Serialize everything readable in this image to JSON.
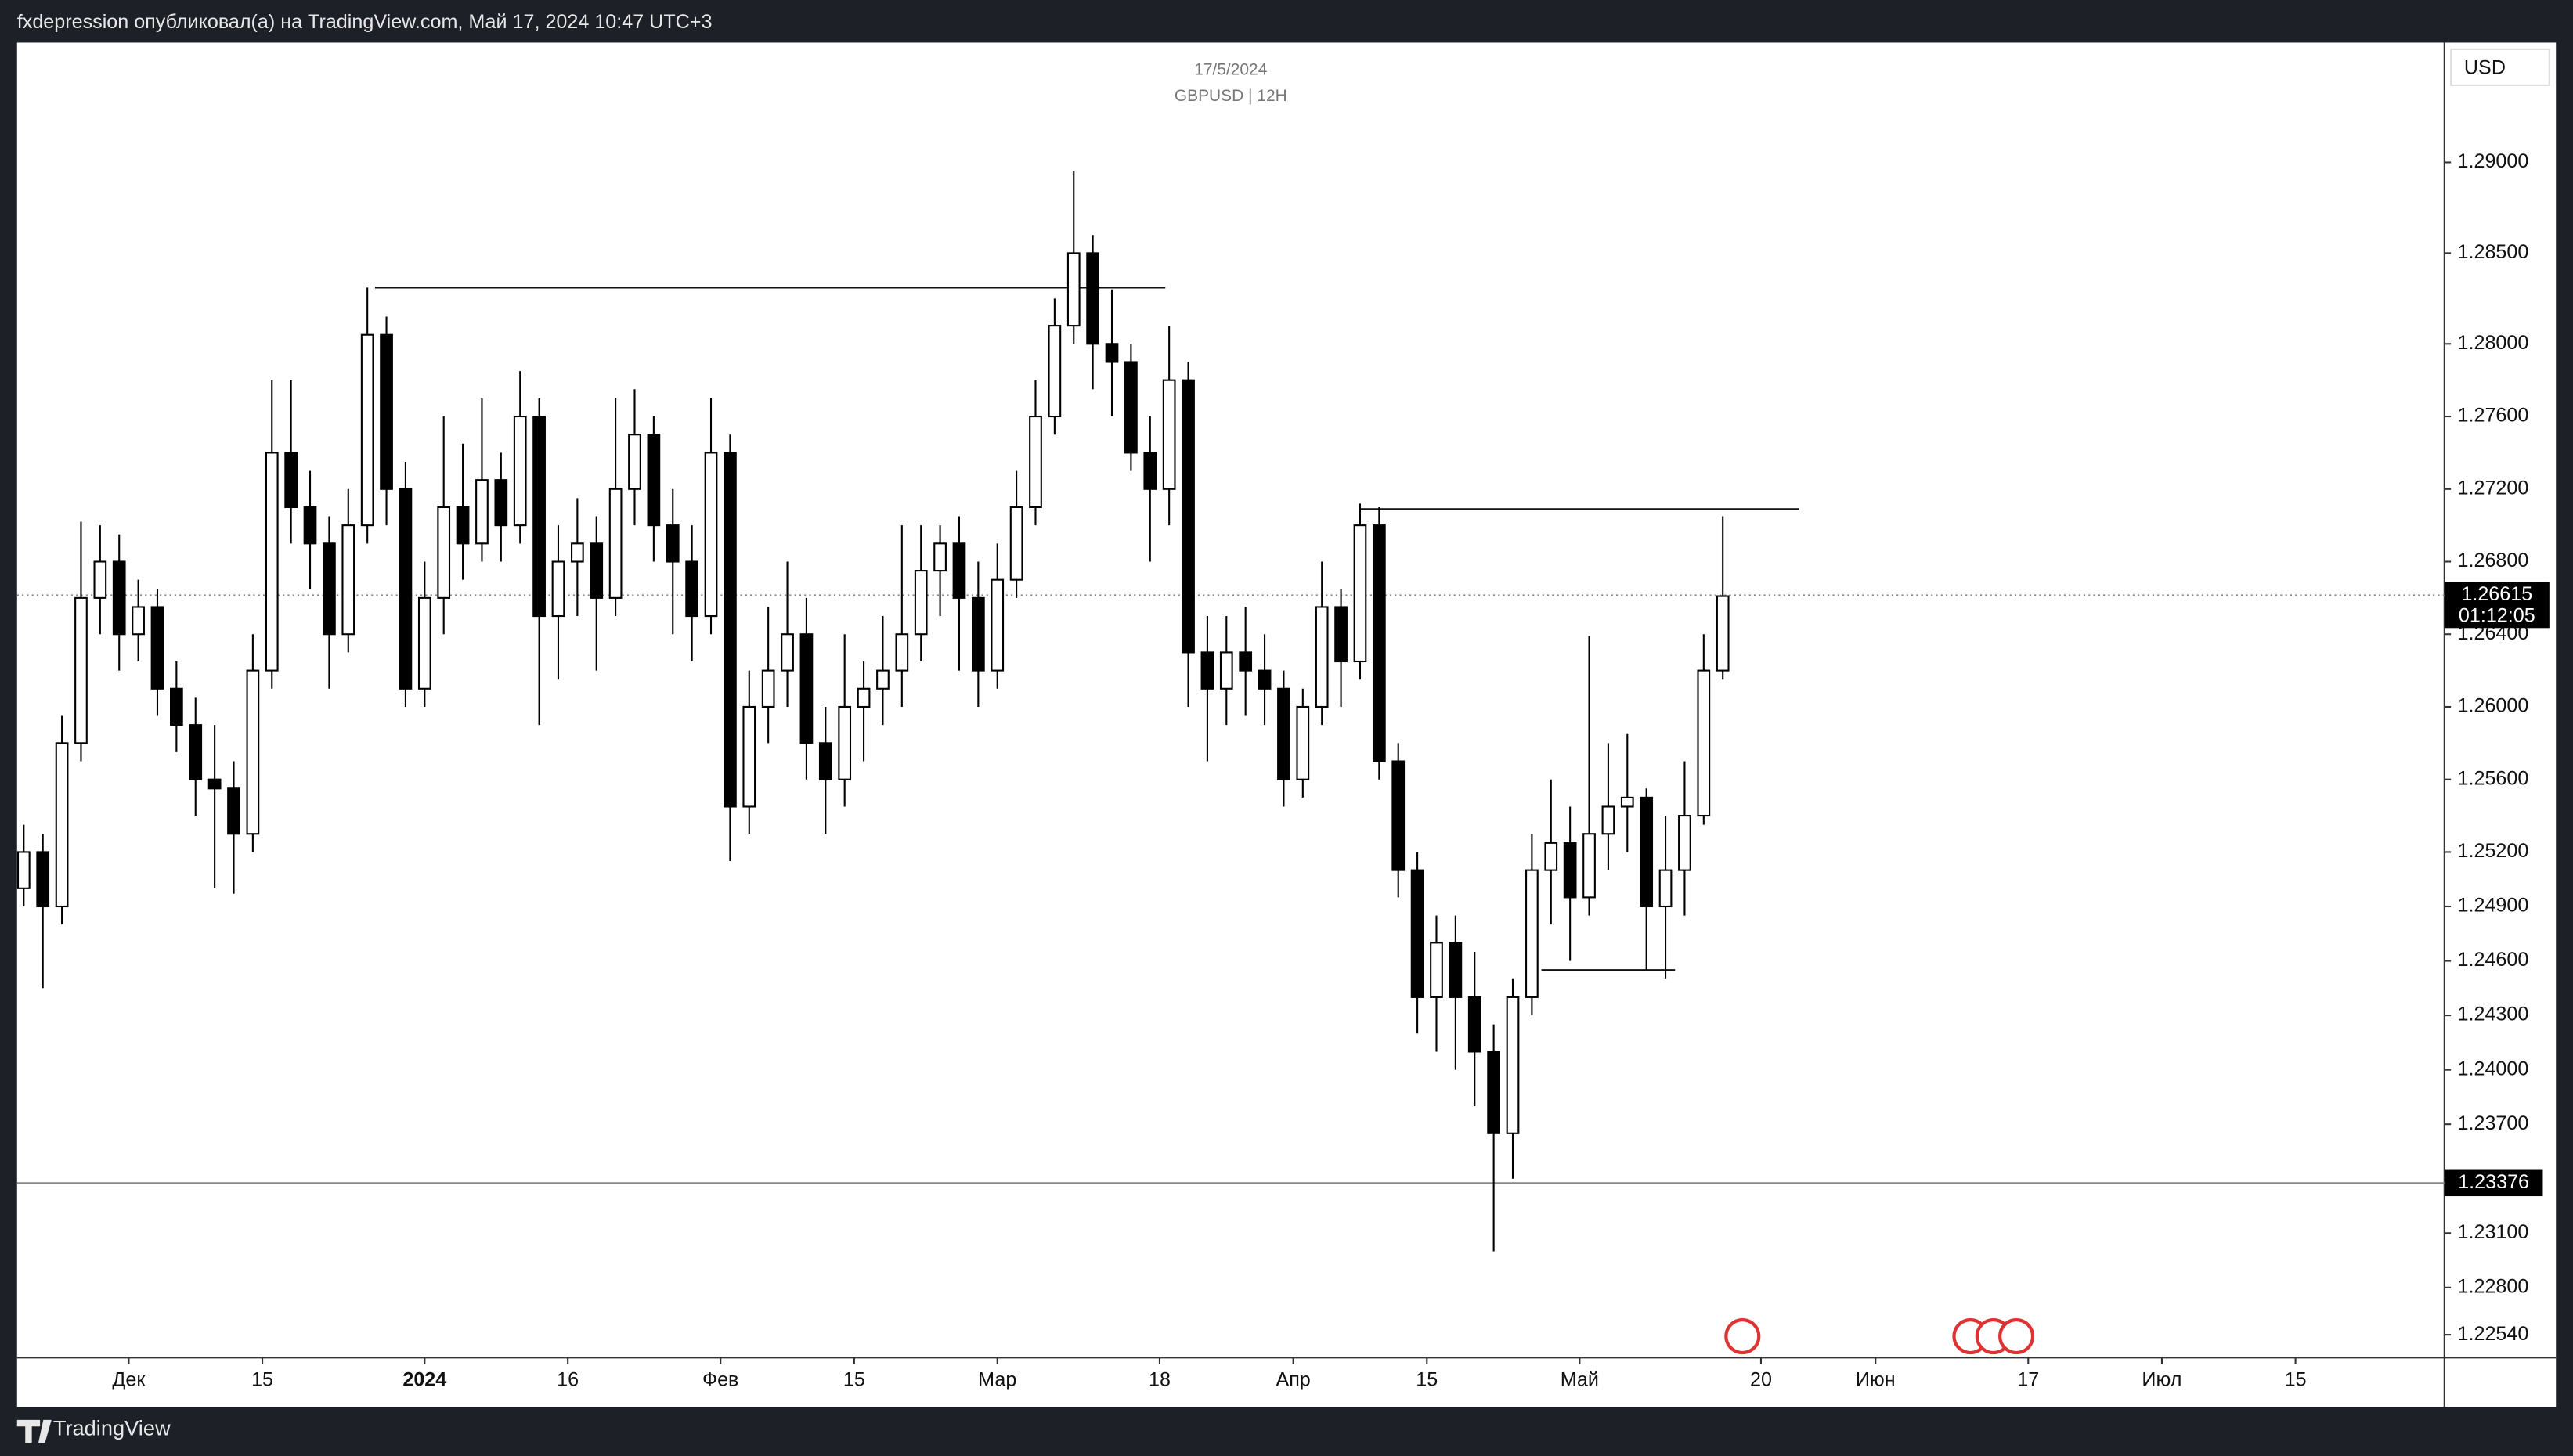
{
  "header": "fxdepression опубликовал(а) на TradingView.com, Май 17, 2024 10:47 UTC+3",
  "footer": "TradingView",
  "chart_data": {
    "type": "candlestick",
    "title": "GBPUSD | 12H",
    "subtitle": "17/5/2024",
    "currency": "USD",
    "up_color": "#ffffff",
    "down_color": "#000000",
    "border_color": "#000000",
    "x": [
      -11,
      -9,
      -7,
      -5,
      -3,
      -1,
      1,
      3,
      5,
      7,
      9,
      11,
      13,
      15,
      17,
      19,
      21,
      23,
      25,
      27,
      29,
      31,
      33,
      35,
      37,
      39,
      41,
      43,
      45,
      47,
      49,
      51,
      53,
      55,
      57,
      59,
      61,
      63,
      65,
      67,
      69,
      71,
      73,
      75,
      77,
      79,
      81,
      83,
      85,
      87,
      89,
      91,
      93,
      95,
      97,
      99,
      101,
      103,
      105,
      107,
      109,
      111,
      113,
      115,
      117,
      119,
      121,
      123,
      125,
      127,
      129,
      131,
      133,
      135,
      137,
      139,
      141,
      143,
      145,
      147,
      149,
      151,
      153,
      155,
      157,
      159,
      161,
      163,
      165,
      167
    ],
    "ohlc": [
      [
        1.25,
        1.2535,
        1.249,
        1.252
      ],
      [
        1.252,
        1.253,
        1.2445,
        1.249
      ],
      [
        1.249,
        1.2595,
        1.248,
        1.258
      ],
      [
        1.258,
        1.2702,
        1.257,
        1.266
      ],
      [
        1.266,
        1.27,
        1.264,
        1.268
      ],
      [
        1.268,
        1.2695,
        1.262,
        1.264
      ],
      [
        1.264,
        1.267,
        1.2625,
        1.2655
      ],
      [
        1.2655,
        1.2665,
        1.2595,
        1.261
      ],
      [
        1.261,
        1.2625,
        1.2575,
        1.259
      ],
      [
        1.259,
        1.2605,
        1.254,
        1.256
      ],
      [
        1.256,
        1.259,
        1.25,
        1.2555
      ],
      [
        1.2555,
        1.257,
        1.2497,
        1.253
      ],
      [
        1.253,
        1.264,
        1.252,
        1.262
      ],
      [
        1.262,
        1.278,
        1.261,
        1.274
      ],
      [
        1.274,
        1.278,
        1.269,
        1.271
      ],
      [
        1.271,
        1.273,
        1.2665,
        1.269
      ],
      [
        1.269,
        1.2705,
        1.261,
        1.264
      ],
      [
        1.264,
        1.272,
        1.263,
        1.27
      ],
      [
        1.27,
        1.2831,
        1.269,
        1.2805
      ],
      [
        1.2805,
        1.2815,
        1.27,
        1.272
      ],
      [
        1.272,
        1.2735,
        1.26,
        1.261
      ],
      [
        1.261,
        1.268,
        1.26,
        1.266
      ],
      [
        1.266,
        1.276,
        1.264,
        1.271
      ],
      [
        1.271,
        1.2745,
        1.267,
        1.269
      ],
      [
        1.269,
        1.277,
        1.268,
        1.2725
      ],
      [
        1.2725,
        1.274,
        1.268,
        1.27
      ],
      [
        1.27,
        1.2785,
        1.269,
        1.276
      ],
      [
        1.276,
        1.277,
        1.259,
        1.265
      ],
      [
        1.265,
        1.27,
        1.2615,
        1.268
      ],
      [
        1.268,
        1.2715,
        1.265,
        1.269
      ],
      [
        1.269,
        1.2705,
        1.262,
        1.266
      ],
      [
        1.266,
        1.277,
        1.265,
        1.272
      ],
      [
        1.272,
        1.2775,
        1.27,
        1.275
      ],
      [
        1.275,
        1.276,
        1.268,
        1.27
      ],
      [
        1.27,
        1.272,
        1.264,
        1.268
      ],
      [
        1.268,
        1.27,
        1.2625,
        1.265
      ],
      [
        1.265,
        1.277,
        1.264,
        1.274
      ],
      [
        1.274,
        1.275,
        1.2515,
        1.2545
      ],
      [
        1.2545,
        1.262,
        1.253,
        1.26
      ],
      [
        1.26,
        1.2655,
        1.258,
        1.262
      ],
      [
        1.262,
        1.268,
        1.26,
        1.264
      ],
      [
        1.264,
        1.266,
        1.256,
        1.258
      ],
      [
        1.258,
        1.26,
        1.253,
        1.256
      ],
      [
        1.256,
        1.264,
        1.2545,
        1.26
      ],
      [
        1.26,
        1.2625,
        1.257,
        1.261
      ],
      [
        1.261,
        1.265,
        1.259,
        1.262
      ],
      [
        1.262,
        1.27,
        1.26,
        1.264
      ],
      [
        1.264,
        1.27,
        1.2625,
        1.2675
      ],
      [
        1.2675,
        1.27,
        1.265,
        1.269
      ],
      [
        1.269,
        1.2705,
        1.262,
        1.266
      ],
      [
        1.266,
        1.268,
        1.26,
        1.262
      ],
      [
        1.262,
        1.269,
        1.261,
        1.267
      ],
      [
        1.267,
        1.273,
        1.266,
        1.271
      ],
      [
        1.271,
        1.278,
        1.27,
        1.276
      ],
      [
        1.276,
        1.2825,
        1.275,
        1.281
      ],
      [
        1.281,
        1.2895,
        1.28,
        1.285
      ],
      [
        1.285,
        1.286,
        1.2775,
        1.28
      ],
      [
        1.28,
        1.283,
        1.276,
        1.279
      ],
      [
        1.279,
        1.28,
        1.273,
        1.274
      ],
      [
        1.274,
        1.276,
        1.268,
        1.272
      ],
      [
        1.272,
        1.281,
        1.27,
        1.278
      ],
      [
        1.278,
        1.279,
        1.26,
        1.263
      ],
      [
        1.263,
        1.265,
        1.257,
        1.261
      ],
      [
        1.261,
        1.265,
        1.259,
        1.263
      ],
      [
        1.263,
        1.2655,
        1.2595,
        1.262
      ],
      [
        1.262,
        1.264,
        1.259,
        1.261
      ],
      [
        1.261,
        1.262,
        1.2545,
        1.256
      ],
      [
        1.256,
        1.261,
        1.255,
        1.26
      ],
      [
        1.26,
        1.268,
        1.259,
        1.2655
      ],
      [
        1.2655,
        1.2665,
        1.26,
        1.2625
      ],
      [
        1.2625,
        1.2712,
        1.2615,
        1.27
      ],
      [
        1.27,
        1.271,
        1.256,
        1.257
      ],
      [
        1.257,
        1.258,
        1.2495,
        1.251
      ],
      [
        1.251,
        1.252,
        1.242,
        1.244
      ],
      [
        1.244,
        1.2485,
        1.241,
        1.247
      ],
      [
        1.247,
        1.2485,
        1.24,
        1.244
      ],
      [
        1.244,
        1.2465,
        1.238,
        1.241
      ],
      [
        1.241,
        1.2425,
        1.23,
        1.2365
      ],
      [
        1.2365,
        1.245,
        1.234,
        1.244
      ],
      [
        1.244,
        1.253,
        1.243,
        1.251
      ],
      [
        1.251,
        1.256,
        1.248,
        1.2525
      ],
      [
        1.2525,
        1.2545,
        1.246,
        1.2495
      ],
      [
        1.2495,
        1.2639,
        1.2485,
        1.253
      ],
      [
        1.253,
        1.258,
        1.251,
        1.2545
      ],
      [
        1.2545,
        1.2585,
        1.252,
        1.255
      ],
      [
        1.255,
        1.2555,
        1.2455,
        1.249
      ],
      [
        1.249,
        1.254,
        1.245,
        1.251
      ],
      [
        1.251,
        1.257,
        1.2485,
        1.254
      ],
      [
        1.254,
        1.264,
        1.2535,
        1.262
      ],
      [
        1.262,
        1.2705,
        1.2615,
        1.2661
      ]
    ],
    "xlim": [
      -11.7,
      242.6
    ],
    "xticks": [
      {
        "value": 0,
        "label": "Дек"
      },
      {
        "value": 14,
        "label": "15"
      },
      {
        "value": 31,
        "label": "2024"
      },
      {
        "value": 46,
        "label": "16"
      },
      {
        "value": 62,
        "label": "Фев"
      },
      {
        "value": 76,
        "label": "15"
      },
      {
        "value": 91,
        "label": "Мар"
      },
      {
        "value": 108,
        "label": "18"
      },
      {
        "value": 122,
        "label": "Апр"
      },
      {
        "value": 136,
        "label": "15"
      },
      {
        "value": 152,
        "label": "Май"
      },
      {
        "value": 171,
        "label": "20"
      },
      {
        "value": 183,
        "label": "Июн"
      },
      {
        "value": 199,
        "label": "17"
      },
      {
        "value": 213,
        "label": "Июл"
      },
      {
        "value": 227,
        "label": "15"
      }
    ],
    "ylim": [
      1.22414,
      1.2966
    ],
    "yticks": [
      {
        "value": 1.29,
        "label": "1.29000"
      },
      {
        "value": 1.285,
        "label": "1.28500"
      },
      {
        "value": 1.28,
        "label": "1.28000"
      },
      {
        "value": 1.276,
        "label": "1.27600"
      },
      {
        "value": 1.272,
        "label": "1.27200"
      },
      {
        "value": 1.268,
        "label": "1.26800"
      },
      {
        "value": 1.264,
        "label": "1.26400"
      },
      {
        "value": 1.26,
        "label": "1.26000"
      },
      {
        "value": 1.256,
        "label": "1.25600"
      },
      {
        "value": 1.252,
        "label": "1.25200"
      },
      {
        "value": 1.249,
        "label": "1.24900"
      },
      {
        "value": 1.246,
        "label": "1.24600"
      },
      {
        "value": 1.243,
        "label": "1.24300"
      },
      {
        "value": 1.24,
        "label": "1.24000"
      },
      {
        "value": 1.237,
        "label": "1.23700"
      },
      {
        "value": 1.231,
        "label": "1.23100"
      },
      {
        "value": 1.228,
        "label": "1.22800"
      },
      {
        "value": 1.2254,
        "label": "1.22540"
      }
    ],
    "levels": [
      {
        "price": 1.2831,
        "x": [
          25.8,
          108.6
        ]
      },
      {
        "price": 1.2709,
        "x": [
          129,
          175
        ]
      },
      {
        "price": 1.2455,
        "x": [
          148,
          162
        ]
      }
    ],
    "last_price": 1.26615,
    "countdown": "01:12:05",
    "price_line": 1.23376
  }
}
